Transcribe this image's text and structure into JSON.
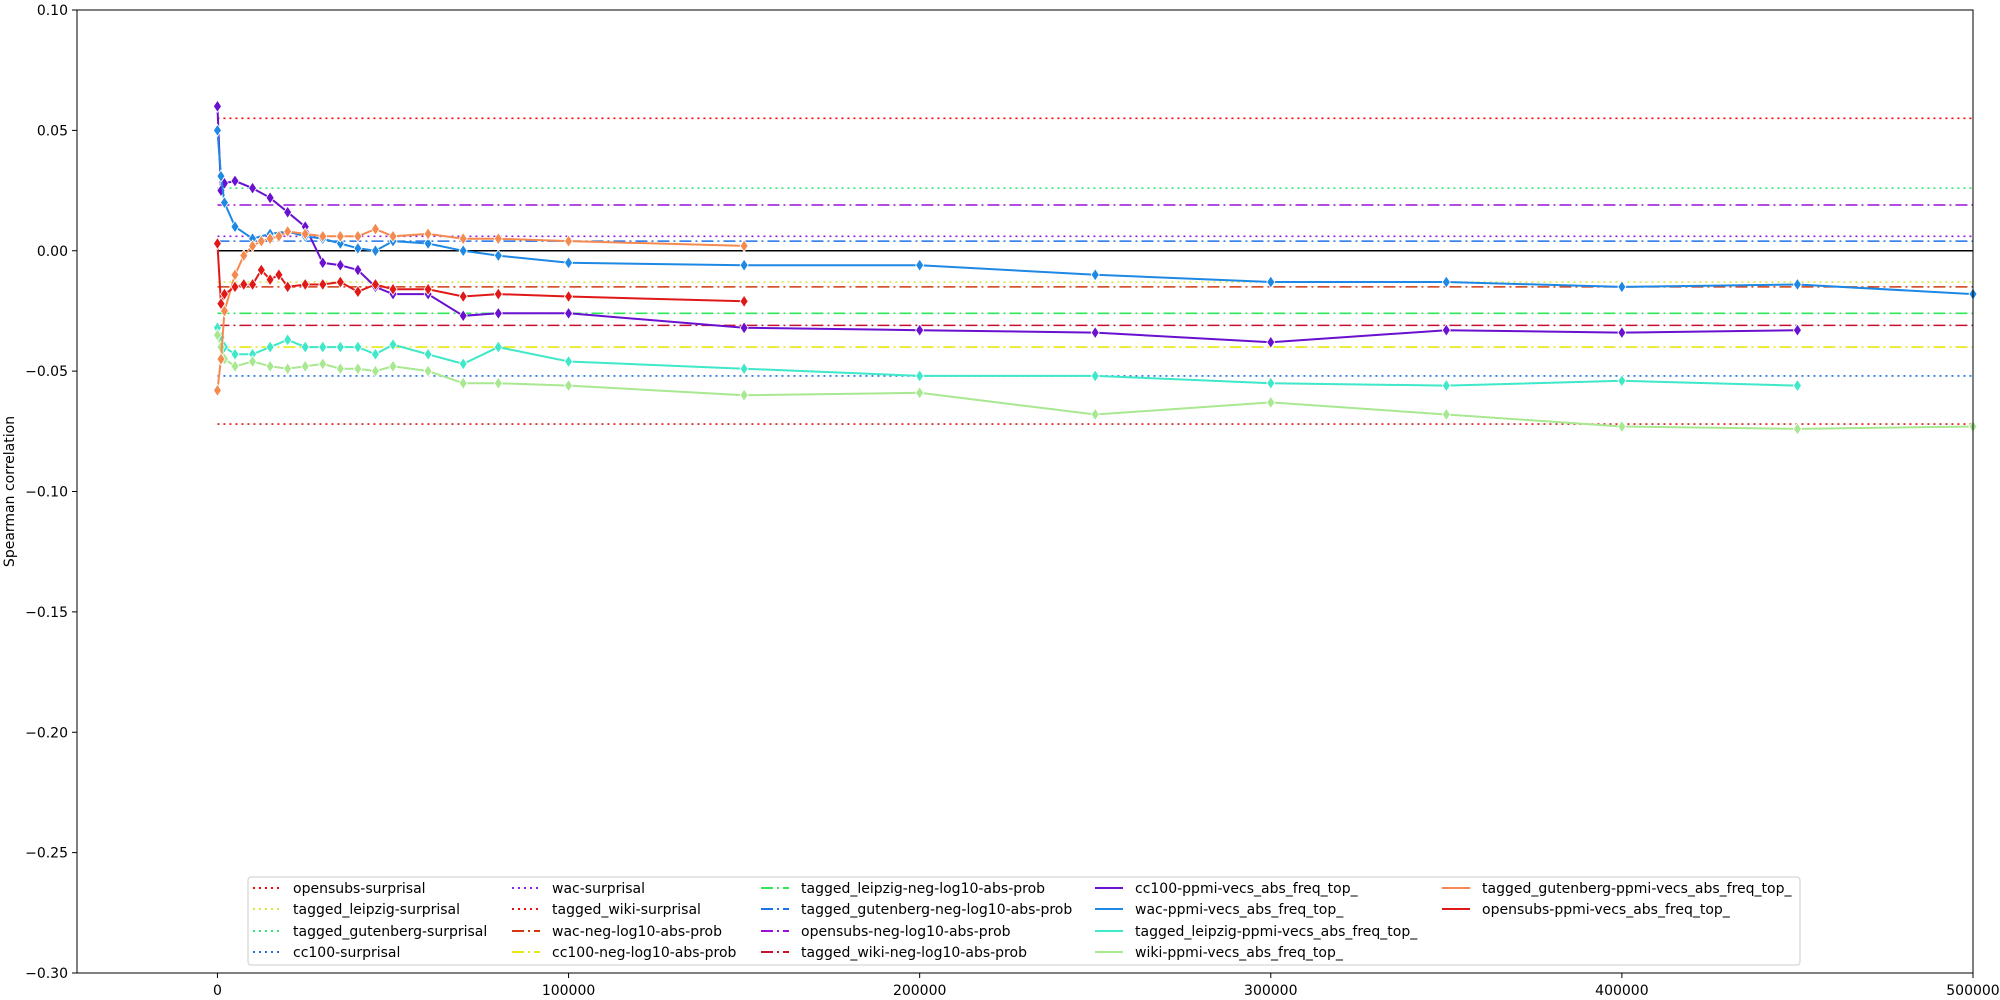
{
  "chart_data": {
    "type": "line",
    "title": "",
    "xlabel": "",
    "ylabel": "Spearman correlation",
    "xlim": [
      -40000,
      500000
    ],
    "ylim": [
      -0.3,
      0.1
    ],
    "xticks": [
      0,
      100000,
      200000,
      300000,
      400000,
      500000
    ],
    "xtick_labels": [
      "0",
      "100000",
      "200000",
      "300000",
      "400000",
      "500000"
    ],
    "yticks": [
      0.1,
      0.05,
      0.0,
      -0.05,
      -0.1,
      -0.15,
      -0.2,
      -0.25,
      -0.3
    ],
    "ytick_labels": [
      "0.10",
      "0.05",
      "0.00",
      "−0.05",
      "−0.10",
      "−0.15",
      "−0.20",
      "−0.25",
      "−0.30"
    ],
    "grid": false,
    "legend_position": "bottom-center",
    "reference_lines": [
      {
        "name": "opensubs-surprisal",
        "style": "dotted",
        "color": "#ff0000",
        "value": 0.055
      },
      {
        "name": "tagged_leipzig-surprisal",
        "style": "dotted",
        "color": "#dbe83a",
        "value": -0.013
      },
      {
        "name": "tagged_gutenberg-surprisal",
        "style": "dotted",
        "color": "#2ee879",
        "value": 0.026
      },
      {
        "name": "cc100-surprisal",
        "style": "dotted",
        "color": "#1e6fe8",
        "value": -0.052
      },
      {
        "name": "wac-surprisal",
        "style": "dotted",
        "color": "#8f1ee8",
        "value": 0.006
      },
      {
        "name": "tagged_wiki-surprisal",
        "style": "dotted",
        "color": "#e01010",
        "value": -0.072
      },
      {
        "name": "wac-neg-log10-abs-prob",
        "style": "dashdot",
        "color": "#d03a10",
        "value": -0.015
      },
      {
        "name": "cc100-neg-log10-abs-prob",
        "style": "dashdot",
        "color": "#e8e810",
        "value": -0.04
      },
      {
        "name": "tagged_leipzig-neg-log10-abs-prob",
        "style": "dashdot",
        "color": "#2ee85a",
        "value": -0.026
      },
      {
        "name": "tagged_gutenberg-neg-log10-abs-prob",
        "style": "dashdot",
        "color": "#1e72e8",
        "value": 0.004
      },
      {
        "name": "opensubs-neg-log10-abs-prob",
        "style": "dashdot",
        "color": "#9a10d8",
        "value": 0.019
      },
      {
        "name": "tagged_wiki-neg-log10-abs-prob",
        "style": "dashdot",
        "color": "#c81030",
        "value": -0.031
      }
    ],
    "zero_line": {
      "value": 0.0,
      "color": "#000000"
    },
    "x_start": 0,
    "x_end": 500000,
    "series": [
      {
        "name": "cc100-ppmi-vecs_abs_freq_top_",
        "color": "#6a10d0",
        "x": [
          0,
          1000,
          2000,
          5000,
          10000,
          15000,
          20000,
          25000,
          30000,
          35000,
          40000,
          45000,
          50000,
          60000,
          70000,
          80000,
          100000,
          150000,
          200000,
          250000,
          300000,
          350000,
          400000,
          450000
        ],
        "y": [
          0.06,
          0.025,
          0.028,
          0.029,
          0.026,
          0.022,
          0.016,
          0.01,
          -0.005,
          -0.006,
          -0.008,
          -0.015,
          -0.018,
          -0.018,
          -0.027,
          -0.026,
          -0.026,
          -0.032,
          -0.033,
          -0.034,
          -0.038,
          -0.033,
          -0.034,
          -0.033
        ]
      },
      {
        "name": "wac-ppmi-vecs_abs_freq_top_",
        "color": "#1e88e5",
        "x": [
          0,
          1000,
          2000,
          5000,
          10000,
          15000,
          20000,
          25000,
          30000,
          35000,
          40000,
          45000,
          50000,
          60000,
          70000,
          80000,
          100000,
          150000,
          200000,
          250000,
          300000,
          350000,
          400000,
          450000,
          500000
        ],
        "y": [
          0.05,
          0.031,
          0.02,
          0.01,
          0.005,
          0.007,
          0.008,
          0.006,
          0.005,
          0.003,
          0.001,
          0.0,
          0.004,
          0.003,
          0.0,
          -0.002,
          -0.005,
          -0.006,
          -0.006,
          -0.01,
          -0.013,
          -0.013,
          -0.015,
          -0.014,
          -0.018
        ]
      },
      {
        "name": "tagged_leipzig-ppmi-vecs_abs_freq_top_",
        "color": "#3ee8c8",
        "x": [
          0,
          1000,
          2000,
          5000,
          10000,
          15000,
          20000,
          25000,
          30000,
          35000,
          40000,
          45000,
          50000,
          60000,
          70000,
          80000,
          100000,
          150000,
          200000,
          250000,
          300000,
          350000,
          400000,
          450000
        ],
        "y": [
          -0.032,
          -0.036,
          -0.04,
          -0.043,
          -0.043,
          -0.04,
          -0.037,
          -0.04,
          -0.04,
          -0.04,
          -0.04,
          -0.043,
          -0.039,
          -0.043,
          -0.047,
          -0.04,
          -0.046,
          -0.049,
          -0.052,
          -0.052,
          -0.055,
          -0.056,
          -0.054,
          -0.056
        ]
      },
      {
        "name": "wiki-ppmi-vecs_abs_freq_top_",
        "color": "#a8e890",
        "x": [
          0,
          1000,
          2000,
          5000,
          10000,
          15000,
          20000,
          25000,
          30000,
          35000,
          40000,
          45000,
          50000,
          60000,
          70000,
          80000,
          100000,
          150000,
          200000,
          250000,
          300000,
          350000,
          400000,
          450000,
          500000
        ],
        "y": [
          -0.035,
          -0.04,
          -0.045,
          -0.048,
          -0.046,
          -0.048,
          -0.049,
          -0.048,
          -0.047,
          -0.049,
          -0.049,
          -0.05,
          -0.048,
          -0.05,
          -0.055,
          -0.055,
          -0.056,
          -0.06,
          -0.059,
          -0.068,
          -0.063,
          -0.068,
          -0.073,
          -0.074,
          -0.073
        ]
      },
      {
        "name": "tagged_gutenberg-ppmi-vecs_abs_freq_top_",
        "color": "#f58a50",
        "x": [
          0,
          1000,
          2000,
          5000,
          7500,
          10000,
          12500,
          15000,
          17500,
          20000,
          25000,
          30000,
          35000,
          40000,
          45000,
          50000,
          60000,
          70000,
          80000,
          100000,
          150000
        ],
        "y": [
          -0.058,
          -0.045,
          -0.025,
          -0.01,
          -0.002,
          0.002,
          0.004,
          0.005,
          0.006,
          0.008,
          0.007,
          0.006,
          0.006,
          0.006,
          0.009,
          0.006,
          0.007,
          0.005,
          0.005,
          0.004,
          0.002
        ]
      },
      {
        "name": "opensubs-ppmi-vecs_abs_freq_top_",
        "color": "#e01818",
        "x": [
          0,
          1000,
          2000,
          5000,
          7500,
          10000,
          12500,
          15000,
          17500,
          20000,
          25000,
          30000,
          35000,
          40000,
          45000,
          50000,
          60000,
          70000,
          80000,
          100000,
          150000
        ],
        "y": [
          0.003,
          -0.022,
          -0.018,
          -0.015,
          -0.014,
          -0.014,
          -0.008,
          -0.012,
          -0.01,
          -0.015,
          -0.014,
          -0.014,
          -0.013,
          -0.017,
          -0.014,
          -0.016,
          -0.016,
          -0.019,
          -0.018,
          -0.019,
          -0.021
        ]
      }
    ]
  }
}
